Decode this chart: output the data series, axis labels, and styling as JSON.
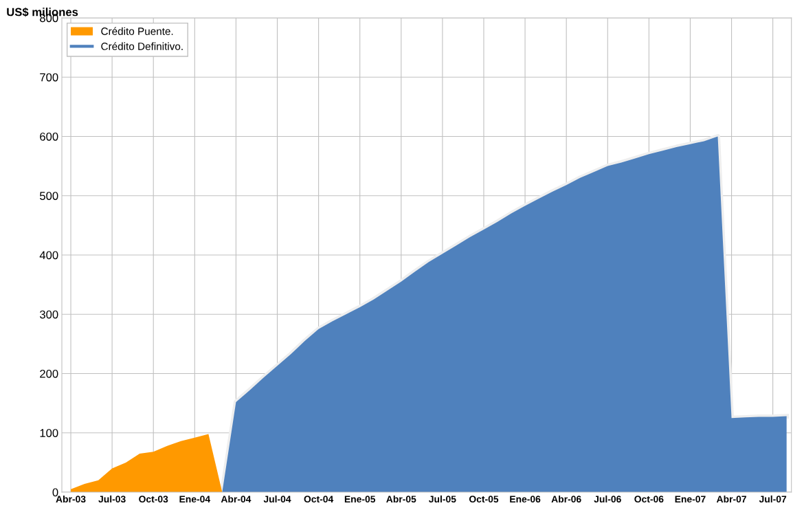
{
  "chart_data": {
    "type": "area",
    "ylabel": "US$ miliones",
    "categories": [
      "Abr-03",
      null,
      null,
      "Jul-03",
      null,
      null,
      "Oct-03",
      null,
      null,
      "Ene-04",
      null,
      null,
      "Abr-04",
      null,
      null,
      "Jul-04",
      null,
      null,
      "Oct-04",
      null,
      null,
      "Ene-05",
      null,
      null,
      "Abr-05",
      null,
      null,
      "Jul-05",
      null,
      null,
      "Oct-05",
      null,
      null,
      "Ene-06",
      null,
      null,
      "Abr-06",
      null,
      null,
      "Jul-06",
      null,
      null,
      "Oct-06",
      null,
      null,
      "Ene-07",
      null,
      null,
      "Abr-07",
      null,
      null,
      "Jul-07",
      null
    ],
    "series": [
      {
        "name": "Crédito Puente.",
        "color": "#ff9900",
        "values": [
          5,
          14,
          20,
          40,
          50,
          65,
          68,
          78,
          86,
          92,
          98,
          0,
          null,
          null,
          null,
          null,
          null,
          null,
          null,
          null,
          null,
          null,
          null,
          null,
          null,
          null,
          null,
          null,
          null,
          null,
          null,
          null,
          null,
          null,
          null,
          null,
          null,
          null,
          null,
          null,
          null,
          null,
          null,
          null,
          null,
          null,
          null,
          null,
          null,
          null,
          null,
          null,
          null
        ]
      },
      {
        "name": "Crédito Definitivo.",
        "color": "#4f81bd",
        "values": [
          null,
          null,
          null,
          null,
          null,
          null,
          null,
          null,
          null,
          null,
          null,
          0,
          152,
          172,
          193,
          213,
          233,
          255,
          275,
          288,
          300,
          312,
          325,
          340,
          355,
          372,
          388,
          402,
          416,
          430,
          443,
          456,
          470,
          483,
          495,
          507,
          518,
          530,
          540,
          550,
          556,
          563,
          570,
          576,
          582,
          587,
          592,
          600,
          125,
          126,
          127,
          127,
          128
        ]
      }
    ],
    "ylim": [
      0,
      800
    ],
    "yticks": [
      0,
      100,
      200,
      300,
      400,
      500,
      600,
      700,
      800
    ],
    "grid": true,
    "legend": "top left"
  }
}
